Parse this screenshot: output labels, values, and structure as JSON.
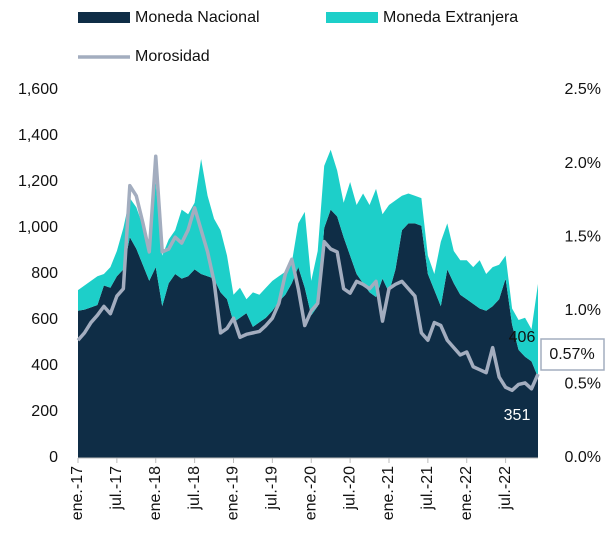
{
  "chart_data": {
    "type": "stacked-area-line",
    "categories": [
      "ene.-17",
      null,
      null,
      null,
      null,
      null,
      "jul.-17",
      null,
      null,
      null,
      null,
      null,
      "ene.-18",
      null,
      null,
      null,
      null,
      null,
      "jul.-18",
      null,
      null,
      null,
      null,
      null,
      "ene.-19",
      null,
      null,
      null,
      null,
      null,
      "jul.-19",
      null,
      null,
      null,
      null,
      null,
      "ene.-20",
      null,
      null,
      null,
      null,
      null,
      "jul.-20",
      null,
      null,
      null,
      null,
      null,
      "ene.-21",
      null,
      null,
      null,
      null,
      null,
      "jul.-21",
      null,
      null,
      null,
      null,
      null,
      "ene.-22",
      null,
      null,
      null,
      null,
      null,
      "jul.-22",
      null,
      null,
      null,
      null,
      null
    ],
    "series": [
      {
        "name": "Moneda Nacional",
        "color": "#0f2d46",
        "values": [
          640,
          645,
          655,
          665,
          750,
          740,
          790,
          820,
          960,
          910,
          840,
          770,
          830,
          660,
          760,
          800,
          780,
          790,
          820,
          800,
          790,
          780,
          720,
          690,
          590,
          610,
          630,
          570,
          590,
          610,
          640,
          680,
          710,
          760,
          830,
          740,
          620,
          660,
          1000,
          1080,
          1050,
          960,
          880,
          800,
          760,
          720,
          700,
          780,
          720,
          820,
          990,
          1020,
          1020,
          1010,
          800,
          730,
          660,
          820,
          760,
          710,
          690,
          670,
          650,
          640,
          660,
          690,
          780,
          580,
          470,
          440,
          420,
          351
        ]
      },
      {
        "name": "Moneda Extranjera",
        "color": "#1dcfc9",
        "values": [
          90,
          105,
          115,
          125,
          50,
          90,
          110,
          180,
          170,
          180,
          170,
          150,
          370,
          220,
          190,
          190,
          300,
          270,
          290,
          500,
          350,
          260,
          270,
          190,
          120,
          130,
          60,
          150,
          120,
          130,
          130,
          110,
          100,
          90,
          190,
          330,
          150,
          240,
          270,
          260,
          200,
          150,
          320,
          300,
          390,
          380,
          470,
          280,
          380,
          300,
          150,
          130,
          120,
          120,
          80,
          70,
          280,
          200,
          140,
          150,
          170,
          160,
          210,
          160,
          170,
          150,
          100,
          70,
          130,
          170,
          140,
          406
        ]
      },
      {
        "name": "Morosidad",
        "color": "#a3adbf",
        "axis": "y2",
        "values": [
          0.8,
          0.85,
          0.92,
          0.97,
          1.03,
          0.98,
          1.1,
          1.15,
          1.85,
          1.78,
          1.6,
          1.4,
          2.05,
          1.4,
          1.42,
          1.5,
          1.46,
          1.55,
          1.7,
          1.55,
          1.4,
          1.2,
          0.85,
          0.88,
          0.95,
          0.82,
          0.84,
          0.85,
          0.86,
          0.9,
          0.95,
          1.05,
          1.25,
          1.35,
          1.15,
          0.9,
          1.0,
          1.05,
          1.47,
          1.42,
          1.4,
          1.15,
          1.12,
          1.2,
          1.18,
          1.15,
          1.2,
          0.93,
          1.15,
          1.18,
          1.2,
          1.15,
          1.1,
          0.85,
          0.8,
          0.92,
          0.9,
          0.8,
          0.75,
          0.7,
          0.72,
          0.62,
          0.6,
          0.58,
          0.75,
          0.55,
          0.48,
          0.46,
          0.5,
          0.51,
          0.47,
          0.57
        ]
      }
    ],
    "ylim": [
      0,
      1600
    ],
    "yticks": [
      0,
      200,
      400,
      600,
      800,
      {
        "value": 1000,
        "label": "1,000"
      },
      {
        "value": 1200,
        "label": "1,200"
      },
      {
        "value": 1400,
        "label": "1,400"
      },
      {
        "value": 1600,
        "label": "1,600"
      }
    ],
    "y2lim": [
      0,
      2.5
    ],
    "y2ticks": [
      {
        "value": 0,
        "label": "0.0%"
      },
      {
        "value": 0.5,
        "label": "0.5%"
      },
      {
        "value": 1.0,
        "label": "1.0%"
      },
      {
        "value": 1.5,
        "label": "1.5%"
      },
      {
        "value": 2.0,
        "label": "2.0%"
      },
      {
        "value": 2.5,
        "label": "2.5%"
      }
    ],
    "annotations": [
      "406",
      "351",
      "0.57%"
    ]
  }
}
